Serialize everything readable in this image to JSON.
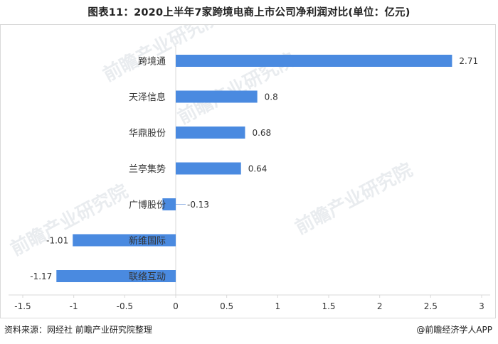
{
  "title": "图表11：2020上半年7家跨境电商上市公司净利润对比(单位：亿元)",
  "source": "资料来源：网经社 前瞻产业研究院整理",
  "brand": "@前瞻经济学人APP",
  "watermark": "前瞻产业研究院",
  "colors": {
    "bar": "#4a8ae0",
    "axis": "#d9d9d9",
    "text": "#333333"
  },
  "chart_data": {
    "type": "bar",
    "orientation": "horizontal",
    "categories": [
      "跨境通",
      "天泽信息",
      "华鼎股份",
      "兰亭集势",
      "广博股份",
      "新维国际",
      "联络互动"
    ],
    "values": [
      2.71,
      0.8,
      0.68,
      0.64,
      -0.13,
      -1.01,
      -1.17
    ],
    "value_labels": [
      "2.71",
      "0.8",
      "0.68",
      "0.64",
      "-0.13",
      "-1.01",
      "-1.17"
    ],
    "xlim": [
      -1.5,
      3
    ],
    "xticks": [
      "-1.5",
      "-1",
      "-0.5",
      "0",
      "0.5",
      "1",
      "1.5",
      "2",
      "2.5",
      "3"
    ],
    "grid": false,
    "legend": "none"
  }
}
